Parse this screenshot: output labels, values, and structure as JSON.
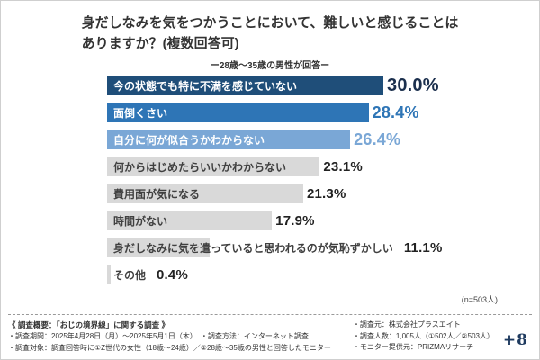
{
  "title": {
    "line1": "身だしなみを気をつかうことにおいて、難しいと感じることは",
    "line2": "ありますか？(複数回答可)",
    "subtitle": "ー28歳〜35歳の男性が回答ー"
  },
  "chart_data": {
    "type": "bar",
    "orientation": "horizontal",
    "title": "身だしなみを気をつかうことにおいて、難しいと感じることはありますか？(複数回答可)",
    "subtitle": "ー28歳〜35歳の男性が回答ー",
    "categories": [
      "今の状態でも特に不満を感じていない",
      "面倒くさい",
      "自分に何が似合うかわからない",
      "何からはじめたらいいかわからない",
      "費用面が気になる",
      "時間がない",
      "身だしなみに気を遣っていると思われるのが気恥ずかしい",
      "その他"
    ],
    "values": [
      30.0,
      28.4,
      26.4,
      23.1,
      21.3,
      17.9,
      11.1,
      0.4
    ],
    "value_labels": [
      "30.0%",
      "28.4%",
      "26.4%",
      "23.1%",
      "21.3%",
      "17.9%",
      "11.1%",
      "0.4%"
    ],
    "bar_colors": [
      "#1f4e79",
      "#2e75b6",
      "#7aa7d6",
      "#d9d9d9",
      "#d9d9d9",
      "#d9d9d9",
      "#d9d9d9",
      "#d9d9d9"
    ],
    "label_text_colors": [
      "#ffffff",
      "#ffffff",
      "#ffffff",
      "#404040",
      "#404040",
      "#404040",
      "#404040",
      "#404040"
    ],
    "value_colors": [
      "#1b2f4d",
      "#2e75b6",
      "#7aa7d6",
      "#222222",
      "#222222",
      "#222222",
      "#222222",
      "#222222"
    ],
    "xlim": [
      0,
      30
    ],
    "grid": false,
    "legend": false,
    "note": "(n=503人)"
  },
  "footer": {
    "left": [
      "《 調査概要：「おじの境界線」に関する調査 》",
      "・調査期間：2025年4月28日（月）〜2025年5月1日（木）　・調査方法：インターネット調査",
      "・調査対象：調査回答時に①Z世代の女性（18歳〜24歳）／②28歳〜35歳の男性と回答したモニター"
    ],
    "right": [
      "・調査元：株式会社プラスエイト",
      "・調査人数：1,005人（①502人／②503人）",
      "・モニター提供元：PRIZMAリサーチ"
    ],
    "logo": "+8"
  }
}
